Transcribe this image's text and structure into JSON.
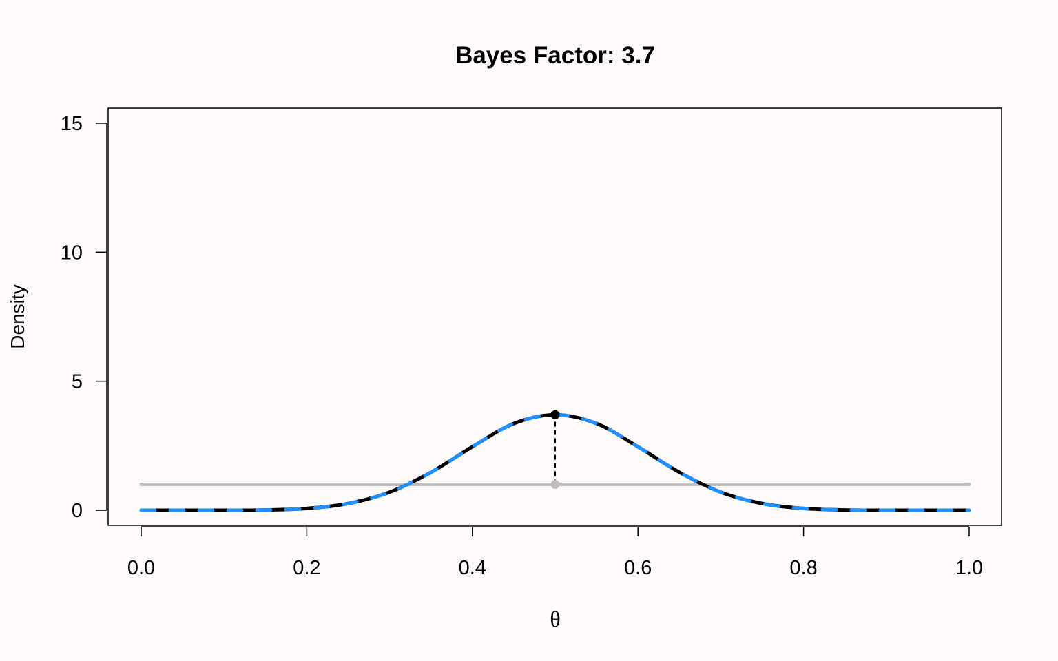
{
  "chart_data": {
    "type": "line",
    "title": "Bayes Factor: 3.7",
    "xlabel": "θ",
    "ylabel": "Density",
    "xlim": [
      0,
      1
    ],
    "ylim": [
      0,
      15
    ],
    "x_ticks": [
      "0.0",
      "0.2",
      "0.4",
      "0.6",
      "0.8",
      "1.0"
    ],
    "x_tick_values": [
      0,
      0.2,
      0.4,
      0.6,
      0.8,
      1.0
    ],
    "y_ticks": [
      "0",
      "5",
      "10",
      "15"
    ],
    "y_tick_values": [
      0,
      5,
      10,
      15
    ],
    "grid": false,
    "series": [
      {
        "role": "prior",
        "style": "solid",
        "color": "#BEBEBE",
        "x": [
          0.0,
          0.5,
          1.0
        ],
        "y": [
          1,
          1,
          1
        ]
      },
      {
        "role": "posterior",
        "style": "solid",
        "color": "#000000",
        "x": [
          0.0,
          0.05,
          0.1,
          0.15,
          0.2,
          0.25,
          0.3,
          0.35,
          0.4,
          0.45,
          0.5,
          0.55,
          0.6,
          0.65,
          0.7,
          0.75,
          0.8,
          0.85,
          0.9,
          0.95,
          1.0
        ],
        "y": [
          0.0,
          0.0,
          0.0,
          0.01,
          0.07,
          0.26,
          0.7,
          1.47,
          2.46,
          3.36,
          3.7,
          3.36,
          2.46,
          1.47,
          0.7,
          0.26,
          0.07,
          0.01,
          0.0,
          0.0,
          0.0
        ]
      },
      {
        "role": "posterior-overlay",
        "style": "dashed",
        "color": "#1E90FF",
        "x": [
          0.0,
          0.05,
          0.1,
          0.15,
          0.2,
          0.25,
          0.3,
          0.35,
          0.4,
          0.45,
          0.5,
          0.55,
          0.6,
          0.65,
          0.7,
          0.75,
          0.8,
          0.85,
          0.9,
          0.95,
          1.0
        ],
        "y": [
          0.0,
          0.0,
          0.0,
          0.01,
          0.07,
          0.26,
          0.7,
          1.47,
          2.46,
          3.36,
          3.7,
          3.36,
          2.46,
          1.47,
          0.7,
          0.26,
          0.07,
          0.01,
          0.0,
          0.0,
          0.0
        ]
      }
    ],
    "annotations": [
      {
        "type": "point",
        "x": 0.5,
        "y": 3.7,
        "color": "#000000"
      },
      {
        "type": "point",
        "x": 0.5,
        "y": 1,
        "color": "#BEBEBE"
      },
      {
        "type": "vline",
        "x": 0.5,
        "y_from": 1,
        "y_to": 3.7,
        "style": "dashed",
        "color": "#000000"
      }
    ],
    "colors": {
      "background": "#FFFAFA",
      "axes": "#000000"
    }
  }
}
